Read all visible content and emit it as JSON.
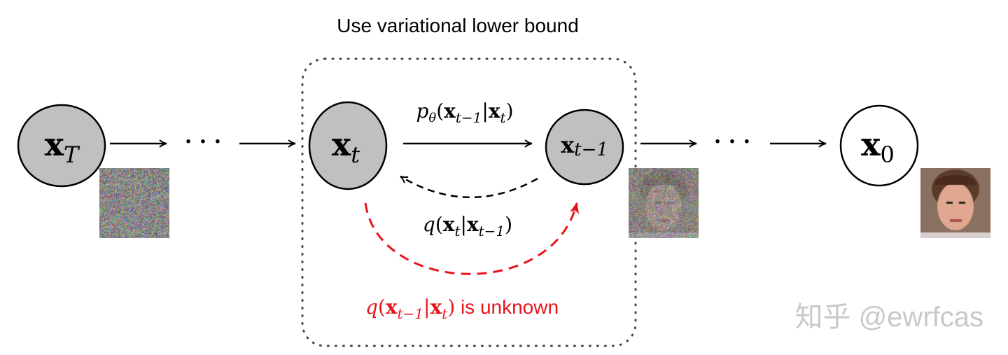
{
  "title": "Use variational lower bound",
  "nodes": {
    "xT": {
      "base": "x",
      "sub": "T",
      "fill": "#c0c0c0"
    },
    "xt": {
      "base": "x",
      "sub": "t",
      "fill": "#c0c0c0"
    },
    "xt1": {
      "base": "x",
      "sub": "t−1",
      "fill": "#c0c0c0"
    },
    "x0": {
      "base": "x",
      "sub": "0",
      "fill": "#ffffff"
    }
  },
  "ellipsis": "· · ·",
  "edges": {
    "reverse_label": {
      "p": "p",
      "theta": "θ",
      "open": "(",
      "x1": "x",
      "s1": "t−1",
      "bar": "|",
      "x2": "x",
      "s2": "t",
      "close": ")"
    },
    "forward_label": {
      "q": "q",
      "open": "(",
      "x1": "x",
      "s1": "t",
      "bar": "|",
      "x2": "x",
      "s2": "t−1",
      "close": ")"
    },
    "unknown_label": {
      "q": "q",
      "open": "(",
      "x1": "x",
      "s1": "t−1",
      "bar": "|",
      "x2": "x",
      "s2": "t",
      "close": ")",
      "suffix": " is unknown"
    }
  },
  "colors": {
    "red": "#e8141c",
    "node_gray": "#c0c0c0",
    "watermark": "#c8c8c8"
  },
  "images": [
    "pure-noise",
    "noisy-face",
    "clean-face"
  ],
  "watermark": "知乎 @ewrfcas"
}
